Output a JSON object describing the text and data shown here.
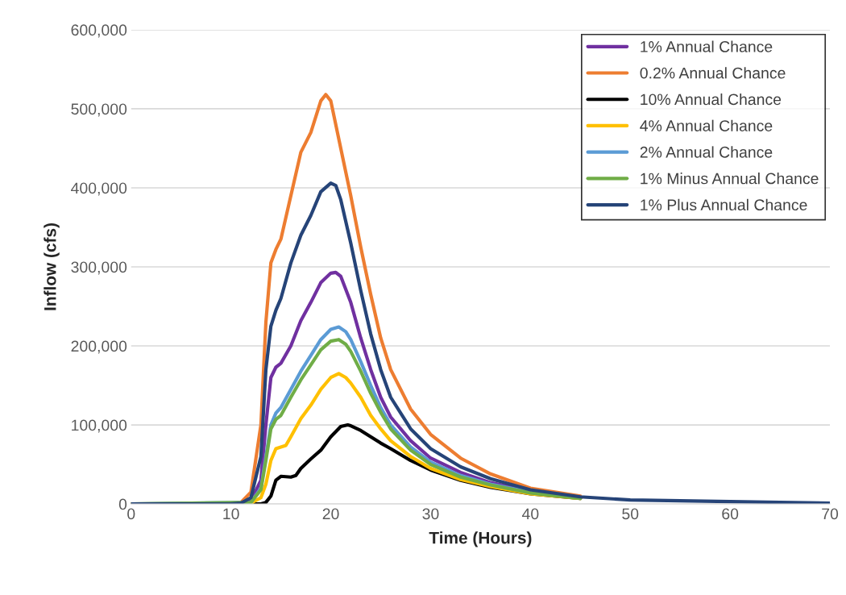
{
  "chart_data": {
    "type": "line",
    "xlabel": "Time (Hours)",
    "ylabel": "Inflow (cfs)",
    "xlim": [
      0,
      70
    ],
    "xticks": [
      0,
      10,
      20,
      30,
      40,
      50,
      60,
      70
    ],
    "ylim": [
      0,
      600000
    ],
    "yticks": [
      {
        "value": 0,
        "label": "0"
      },
      {
        "value": 100000,
        "label": "100,000"
      },
      {
        "value": 200000,
        "label": "200,000"
      },
      {
        "value": 300000,
        "label": "300,000"
      },
      {
        "value": 400000,
        "label": "400,000"
      },
      {
        "value": 500000,
        "label": "500,000"
      },
      {
        "value": 600000,
        "label": "600,000"
      }
    ],
    "grid": "y",
    "legend": "top right",
    "marker": "none",
    "line_style": "solid",
    "series": [
      {
        "name": "1% Annual Chance",
        "color": "#7030a0",
        "x": [
          0,
          11,
          12,
          13,
          13.5,
          14,
          14.5,
          15,
          16,
          17,
          18,
          19,
          20,
          20.5,
          21,
          22,
          23,
          24,
          25,
          26,
          28,
          30,
          33,
          36,
          40,
          45
        ],
        "values": [
          0,
          0,
          4000,
          30000,
          100000,
          160000,
          173000,
          178000,
          200000,
          232000,
          255000,
          280000,
          292000,
          293000,
          288000,
          255000,
          210000,
          170000,
          135000,
          110000,
          80000,
          58000,
          40000,
          27000,
          16000,
          8000
        ]
      },
      {
        "name": "0.2% Annual Chance",
        "color": "#ed7d31",
        "x": [
          0,
          10,
          11,
          12,
          13,
          13.5,
          14,
          14.5,
          15,
          16,
          17,
          18,
          19,
          19.5,
          20,
          21,
          22,
          23,
          24,
          25,
          26,
          28,
          30,
          33,
          36,
          40,
          45
        ],
        "values": [
          0,
          0,
          2000,
          15000,
          100000,
          230000,
          305000,
          322000,
          335000,
          390000,
          445000,
          470000,
          510000,
          518000,
          510000,
          450000,
          390000,
          325000,
          265000,
          210000,
          170000,
          120000,
          88000,
          58000,
          38000,
          20000,
          10000
        ]
      },
      {
        "name": "10% Annual Chance",
        "color": "#000000",
        "x": [
          0,
          13,
          13.5,
          14,
          14.5,
          15,
          16,
          16.5,
          17,
          18,
          19,
          20,
          21,
          21.7,
          22,
          23,
          24,
          25,
          26,
          28,
          30,
          33,
          36,
          40,
          45
        ],
        "values": [
          0,
          0,
          2000,
          10000,
          30000,
          35000,
          34000,
          36000,
          45000,
          57000,
          68000,
          85000,
          98000,
          100000,
          99000,
          93000,
          85000,
          77000,
          70000,
          55000,
          43000,
          30000,
          21000,
          13000,
          7000
        ]
      },
      {
        "name": "4% Annual Chance",
        "color": "#ffc000",
        "x": [
          0,
          12,
          13,
          13.5,
          14,
          14.5,
          15,
          15.5,
          16,
          17,
          18,
          19,
          20,
          20.8,
          21.5,
          22,
          23,
          24,
          25,
          26,
          28,
          30,
          33,
          36,
          40,
          45
        ],
        "values": [
          0,
          1000,
          8000,
          25000,
          55000,
          70000,
          72000,
          74000,
          85000,
          108000,
          125000,
          145000,
          160000,
          165000,
          160000,
          153000,
          135000,
          112000,
          95000,
          80000,
          60000,
          45000,
          31000,
          22000,
          13000,
          7000
        ]
      },
      {
        "name": "2% Annual Chance",
        "color": "#5b9bd5",
        "x": [
          0,
          12,
          13,
          13.5,
          14,
          14.5,
          15,
          16,
          17,
          18,
          19,
          20,
          20.8,
          21.5,
          22,
          23,
          24,
          25,
          26,
          28,
          30,
          33,
          36,
          40,
          45
        ],
        "values": [
          0,
          2000,
          20000,
          60000,
          100000,
          115000,
          122000,
          145000,
          168000,
          188000,
          208000,
          221000,
          224000,
          218000,
          208000,
          180000,
          150000,
          122000,
          100000,
          72000,
          53000,
          36000,
          25000,
          15000,
          8000
        ]
      },
      {
        "name": "1% Minus Annual Chance",
        "color": "#70ad47",
        "x": [
          0,
          12,
          13,
          13.5,
          14,
          14.5,
          15,
          16,
          17,
          18,
          19,
          20,
          20.8,
          21.5,
          22,
          23,
          24,
          25,
          26,
          28,
          30,
          33,
          36,
          40,
          45
        ],
        "values": [
          0,
          2000,
          18000,
          55000,
          95000,
          107000,
          112000,
          135000,
          157000,
          176000,
          195000,
          206000,
          208000,
          202000,
          193000,
          168000,
          140000,
          116000,
          95000,
          68000,
          50000,
          34000,
          24000,
          14000,
          7000
        ]
      },
      {
        "name": "1% Plus Annual Chance",
        "color": "#264478",
        "x": [
          0,
          10,
          11,
          12,
          13,
          13.5,
          14,
          14.5,
          15,
          16,
          17,
          18,
          19,
          20,
          20.5,
          21,
          22,
          23,
          24,
          25,
          26,
          28,
          30,
          33,
          36,
          40,
          45,
          50,
          55,
          60,
          65,
          70
        ],
        "values": [
          0,
          0,
          1000,
          8000,
          60000,
          170000,
          225000,
          245000,
          260000,
          305000,
          340000,
          365000,
          395000,
          406000,
          403000,
          385000,
          330000,
          270000,
          215000,
          170000,
          135000,
          95000,
          70000,
          47000,
          32000,
          18000,
          9000,
          5000,
          4000,
          3000,
          2000,
          1000
        ]
      }
    ]
  }
}
